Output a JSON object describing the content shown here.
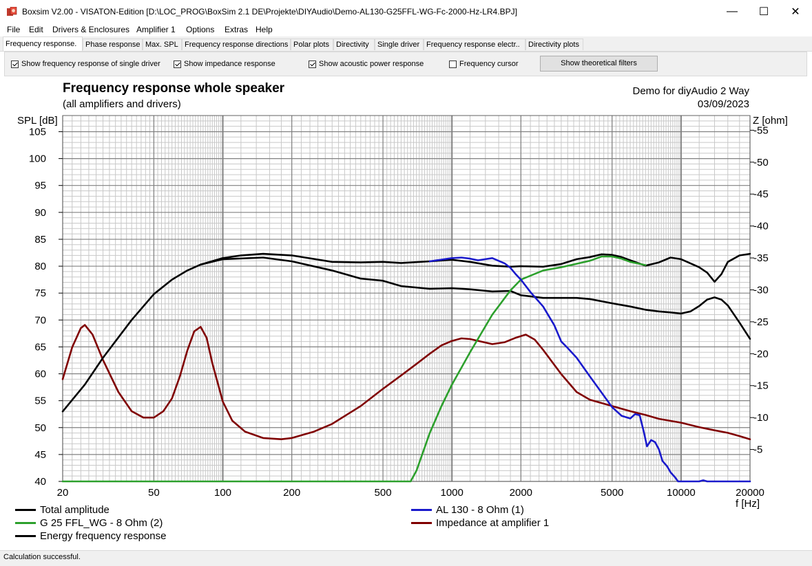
{
  "window": {
    "title": "Boxsim V2.00 - VISATON-Edition [D:\\LOC_PROG\\BoxSim 2.1 DE\\Projekte\\DIYAudio\\Demo-AL130-G25FFL-WG-Fc-2000-Hz-LR4.BPJ]",
    "minimize": "—",
    "maximize": "☐",
    "close": "✕"
  },
  "menu": [
    "File",
    "Edit",
    "Drivers & Enclosures",
    "Amplifier 1",
    "Options",
    "Extras",
    "Help"
  ],
  "tabs": [
    "Frequency response.",
    "Phase response",
    "Max. SPL",
    "Frequency response directions",
    "Polar plots",
    "Directivity",
    "Single driver",
    "Frequency response electr..",
    "Directivity plots"
  ],
  "options": {
    "single_driver": "Show frequency response of single driver",
    "impedance": "Show impedance response",
    "acoustic_power": "Show acoustic power response",
    "frequency_cursor": "Frequency cursor",
    "theoretical_filters": "Show theoretical filters"
  },
  "status": "Calculation successful.",
  "colors": {
    "total": "#000000",
    "tweeter": "#2ca02c",
    "woofer": "#1a1acc",
    "impedance": "#800000",
    "grid_major": "#808080",
    "grid_minor": "#c8c8c8"
  },
  "chart_data": {
    "type": "line",
    "title": "Frequency response whole speaker",
    "subtitle": "(all amplifiers and drivers)",
    "project": "Demo for diyAudio 2 Way",
    "date": "03/09/2023",
    "xlabel": "f [Hz]",
    "ylabel": "SPL [dB]",
    "y2label": "Z [ohm]",
    "xscale": "log",
    "xlim": [
      20,
      20000
    ],
    "ylim": [
      40,
      108
    ],
    "y2lim": [
      0,
      57.3
    ],
    "xticks": [
      20,
      50,
      100,
      200,
      500,
      1000,
      2000,
      5000,
      10000,
      20000
    ],
    "xtick_labels": [
      "20",
      "50",
      "100",
      "200",
      "500",
      "1000",
      "2000",
      "5000",
      "10000",
      "20000"
    ],
    "yticks": [
      40,
      45,
      50,
      55,
      60,
      65,
      70,
      75,
      80,
      85,
      90,
      95,
      100,
      105
    ],
    "ytick_labels": [
      "40",
      "45",
      "50",
      "55",
      "60",
      "65",
      "70",
      "75",
      "80",
      "85",
      "90",
      "95",
      "100",
      "105"
    ],
    "y2ticks": [
      5,
      10,
      15,
      20,
      25,
      30,
      35,
      40,
      45,
      50,
      55
    ],
    "y2tick_labels": [
      "5",
      "10",
      "15",
      "20",
      "25",
      "30",
      "35",
      "40",
      "45",
      "50",
      "55"
    ],
    "legend_position": "bottom",
    "series": [
      {
        "name": "Total amplitude",
        "axis": "left",
        "color": "#000000",
        "x": [
          20,
          25,
          30,
          40,
          50,
          60,
          70,
          80,
          100,
          120,
          150,
          200,
          300,
          400,
          500,
          600,
          800,
          1000,
          1200,
          1500,
          1800,
          2000,
          2500,
          3000,
          3500,
          4000,
          4500,
          5000,
          5500,
          6000,
          7000,
          8000,
          9000,
          10000,
          12000,
          13000,
          14000,
          15000,
          16000,
          18000,
          20000
        ],
        "y": [
          53,
          58,
          63,
          70,
          74.8,
          77.5,
          79.2,
          80.3,
          81.5,
          82,
          82.3,
          82,
          80.8,
          80.7,
          80.8,
          80.6,
          80.9,
          81.2,
          80.8,
          80.1,
          79.9,
          80,
          79.9,
          80.4,
          81.3,
          81.7,
          82.2,
          82.1,
          81.7,
          81.1,
          80.1,
          80.7,
          81.6,
          81.3,
          79.8,
          78.8,
          77.1,
          78.5,
          80.8,
          82,
          82.3
        ]
      },
      {
        "name": "G 25 FFL_WG - 8 Ohm (2)",
        "axis": "left",
        "color": "#2ca02c",
        "x": [
          20,
          660,
          700,
          800,
          900,
          1000,
          1200,
          1500,
          1800,
          2000,
          2500,
          3000,
          4000,
          4500,
          5000,
          5500,
          6000,
          7000
        ],
        "y": [
          40,
          40,
          42,
          49,
          54,
          58,
          64,
          71,
          75.5,
          77.5,
          79.2,
          79.8,
          81,
          81.8,
          81.8,
          81.4,
          80.8,
          80.2
        ]
      },
      {
        "name": "Energy frequency response",
        "axis": "left",
        "color": "#000000",
        "x": [
          80,
          100,
          150,
          200,
          300,
          400,
          500,
          600,
          800,
          1000,
          1200,
          1500,
          1800,
          2000,
          2500,
          3000,
          3500,
          4000,
          5000,
          6000,
          7000,
          8000,
          9000,
          10000,
          11000,
          12000,
          13000,
          14000,
          15000,
          16000,
          18000,
          20000
        ],
        "y": [
          80.3,
          81.3,
          81.6,
          80.9,
          79.2,
          77.7,
          77.3,
          76.3,
          75.8,
          75.9,
          75.7,
          75.3,
          75.4,
          74.6,
          74.1,
          74.1,
          74.1,
          73.9,
          73.1,
          72.5,
          71.9,
          71.6,
          71.4,
          71.2,
          71.6,
          72.6,
          73.8,
          74.2,
          73.8,
          72.7,
          69.5,
          66.5
        ]
      },
      {
        "name": "AL 130 - 8 Ohm (1)",
        "axis": "left",
        "color": "#1a1acc",
        "x": [
          800,
          1000,
          1100,
          1200,
          1300,
          1500,
          1700,
          1800,
          1900,
          2000,
          2200,
          2500,
          2800,
          3000,
          3200,
          3500,
          4000,
          4500,
          5000,
          5500,
          6000,
          6300,
          6600,
          6900,
          7100,
          7400,
          7700,
          8000,
          8300,
          8700,
          9000,
          9400,
          9700,
          10000,
          12000,
          12500,
          13000,
          20000
        ],
        "y": [
          80.9,
          81.5,
          81.6,
          81.4,
          81.1,
          81.5,
          80.5,
          79.7,
          78.5,
          77.5,
          75.2,
          72.5,
          69,
          66,
          64.8,
          63,
          59.5,
          56.5,
          53.8,
          52.2,
          51.7,
          52.5,
          52.3,
          49,
          46.5,
          47.7,
          47.3,
          46,
          43.8,
          42.8,
          41.7,
          40.8,
          40,
          40,
          40,
          40.2,
          40,
          40
        ]
      },
      {
        "name": "Impedance at amplifier 1",
        "axis": "right",
        "color": "#800000",
        "x": [
          20,
          22,
          24,
          25,
          27,
          30,
          35,
          40,
          45,
          50,
          55,
          60,
          65,
          70,
          75,
          80,
          85,
          90,
          100,
          110,
          125,
          150,
          180,
          200,
          250,
          300,
          400,
          500,
          600,
          700,
          800,
          900,
          1000,
          1100,
          1200,
          1500,
          1700,
          1900,
          2100,
          2300,
          2500,
          3000,
          3500,
          4000,
          5000,
          6000,
          7000,
          8000,
          10000,
          12000,
          14000,
          16000,
          18000,
          20000
        ],
        "y": [
          16,
          21,
          24,
          24.5,
          23,
          19,
          14,
          11,
          10,
          10,
          11,
          13,
          16.5,
          20.5,
          23.5,
          24.2,
          22.5,
          18.5,
          12.5,
          9.5,
          7.8,
          6.8,
          6.6,
          6.8,
          7.8,
          9,
          11.8,
          14.5,
          16.6,
          18.4,
          20,
          21.3,
          22,
          22.4,
          22.3,
          21.5,
          21.8,
          22.5,
          23,
          22.2,
          20.6,
          16.8,
          14,
          12.8,
          11.8,
          11,
          10.4,
          9.8,
          9.2,
          8.5,
          8,
          7.6,
          7.1,
          6.6
        ]
      }
    ]
  }
}
